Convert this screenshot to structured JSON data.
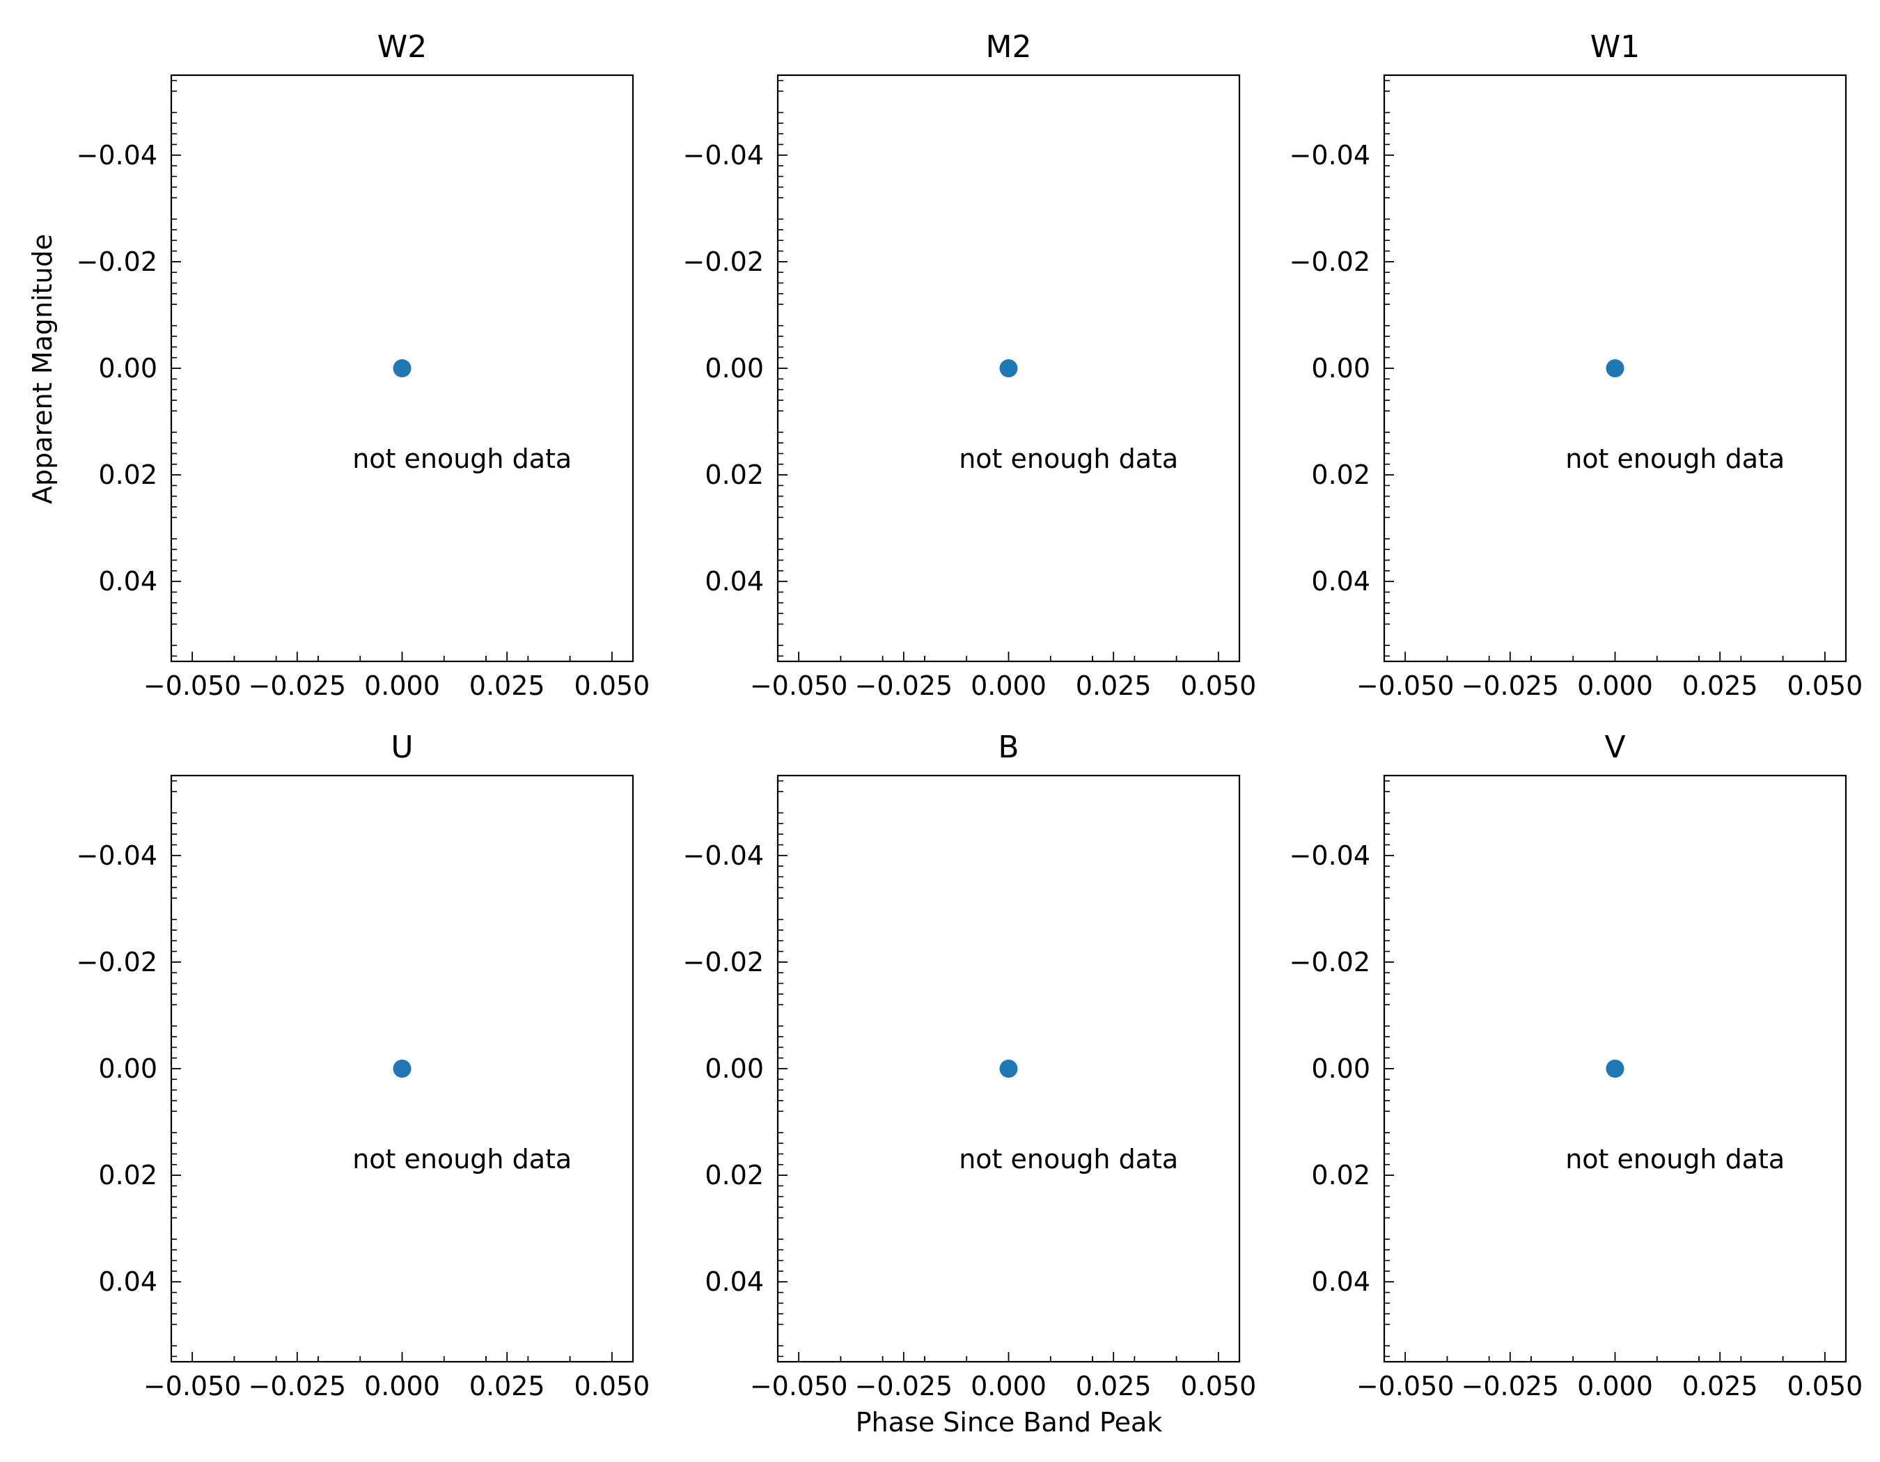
{
  "figure": {
    "xlabel": "Phase Since Band Peak",
    "ylabel": "Apparent Magnitude"
  },
  "chart_data": [
    {
      "type": "scatter",
      "title": "W2",
      "x": [
        0.0
      ],
      "y": [
        0.0
      ],
      "xlim": [
        -0.055,
        0.055
      ],
      "ylim": [
        0.055,
        -0.055
      ],
      "y_inverted": true,
      "xticks": [
        "−0.050",
        "−0.025",
        "0.000",
        "0.025",
        "0.050"
      ],
      "yticks": [
        "−0.04",
        "−0.02",
        "0.00",
        "0.02",
        "0.04"
      ],
      "annotation": "not enough data",
      "color": "#1f77b4"
    },
    {
      "type": "scatter",
      "title": "M2",
      "x": [
        0.0
      ],
      "y": [
        0.0
      ],
      "xlim": [
        -0.055,
        0.055
      ],
      "ylim": [
        0.055,
        -0.055
      ],
      "y_inverted": true,
      "xticks": [
        "−0.050",
        "−0.025",
        "0.000",
        "0.025",
        "0.050"
      ],
      "yticks": [
        "−0.04",
        "−0.02",
        "0.00",
        "0.02",
        "0.04"
      ],
      "annotation": "not enough data",
      "color": "#1f77b4"
    },
    {
      "type": "scatter",
      "title": "W1",
      "x": [
        0.0
      ],
      "y": [
        0.0
      ],
      "xlim": [
        -0.055,
        0.055
      ],
      "ylim": [
        0.055,
        -0.055
      ],
      "y_inverted": true,
      "xticks": [
        "−0.050",
        "−0.025",
        "0.000",
        "0.025",
        "0.050"
      ],
      "yticks": [
        "−0.04",
        "−0.02",
        "0.00",
        "0.02",
        "0.04"
      ],
      "annotation": "not enough data",
      "color": "#1f77b4"
    },
    {
      "type": "scatter",
      "title": "U",
      "x": [
        0.0
      ],
      "y": [
        0.0
      ],
      "xlim": [
        -0.055,
        0.055
      ],
      "ylim": [
        0.055,
        -0.055
      ],
      "y_inverted": true,
      "xticks": [
        "−0.050",
        "−0.025",
        "0.000",
        "0.025",
        "0.050"
      ],
      "yticks": [
        "−0.04",
        "−0.02",
        "0.00",
        "0.02",
        "0.04"
      ],
      "annotation": "not enough data",
      "color": "#1f77b4"
    },
    {
      "type": "scatter",
      "title": "B",
      "x": [
        0.0
      ],
      "y": [
        0.0
      ],
      "xlim": [
        -0.055,
        0.055
      ],
      "ylim": [
        0.055,
        -0.055
      ],
      "y_inverted": true,
      "xticks": [
        "−0.050",
        "−0.025",
        "0.000",
        "0.025",
        "0.050"
      ],
      "yticks": [
        "−0.04",
        "−0.02",
        "0.00",
        "0.02",
        "0.04"
      ],
      "annotation": "not enough data",
      "color": "#1f77b4"
    },
    {
      "type": "scatter",
      "title": "V",
      "x": [
        0.0
      ],
      "y": [
        0.0
      ],
      "xlim": [
        -0.055,
        0.055
      ],
      "ylim": [
        0.055,
        -0.055
      ],
      "y_inverted": true,
      "xticks": [
        "−0.050",
        "−0.025",
        "0.000",
        "0.025",
        "0.050"
      ],
      "yticks": [
        "−0.04",
        "−0.02",
        "0.00",
        "0.02",
        "0.04"
      ],
      "annotation": "not enough data",
      "color": "#1f77b4"
    }
  ]
}
